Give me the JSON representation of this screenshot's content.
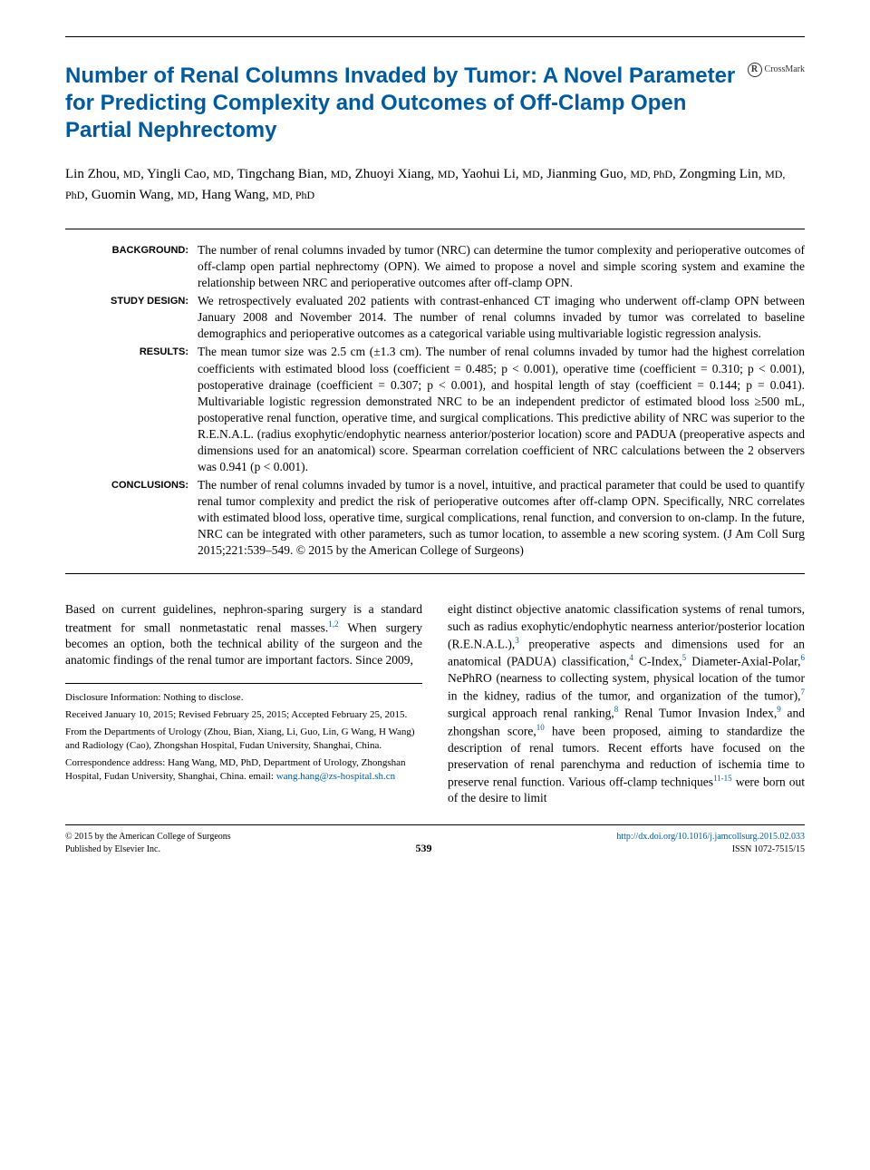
{
  "colors": {
    "accent": "#005a9c",
    "text": "#000000",
    "bg": "#ffffff"
  },
  "typography": {
    "title_fontsize": 24,
    "title_family": "Arial",
    "body_fontsize": 13.5,
    "body_family": "Georgia",
    "abstract_label_fontsize": 11,
    "footer_fontsize": 10
  },
  "crossmark": {
    "label": "CrossMark",
    "glyph": "R"
  },
  "title": "Number of Renal Columns Invaded by Tumor: A Novel Parameter for Predicting Complexity and Outcomes of Off-Clamp Open Partial Nephrectomy",
  "authors_html": "Lin Zhou, <span class='deg'>MD</span>, Yingli Cao, <span class='deg'>MD</span>, Tingchang Bian, <span class='deg'>MD</span>, Zhuoyi Xiang, <span class='deg'>MD</span>, Yaohui Li, <span class='deg'>MD</span>, Jianming Guo, <span class='deg'>MD, PhD</span>, Zongming Lin, <span class='deg'>MD, PhD</span>, Guomin Wang, <span class='deg'>MD</span>, Hang Wang, <span class='deg'>MD, PhD</span>",
  "abstract": [
    {
      "label": "BACKGROUND:",
      "text": "The number of renal columns invaded by tumor (NRC) can determine the tumor complexity and perioperative outcomes of off-clamp open partial nephrectomy (OPN). We aimed to propose a novel and simple scoring system and examine the relationship between NRC and perioperative outcomes after off-clamp OPN."
    },
    {
      "label": "STUDY DESIGN:",
      "text": "We retrospectively evaluated 202 patients with contrast-enhanced CT imaging who underwent off-clamp OPN between January 2008 and November 2014. The number of renal columns invaded by tumor was correlated to baseline demographics and perioperative outcomes as a categorical variable using multivariable logistic regression analysis."
    },
    {
      "label": "RESULTS:",
      "text": "The mean tumor size was 2.5 cm (±1.3 cm). The number of renal columns invaded by tumor had the highest correlation coefficients with estimated blood loss (coefficient = 0.485; p < 0.001), operative time (coefficient = 0.310; p < 0.001), postoperative drainage (coefficient = 0.307; p < 0.001), and hospital length of stay (coefficient = 0.144; p = 0.041). Multivariable logistic regression demonstrated NRC to be an independent predictor of estimated blood loss ≥500 mL, postoperative renal function, operative time, and surgical complications. This predictive ability of NRC was superior to the R.E.N.A.L. (radius exophytic/endophytic nearness anterior/posterior location) score and PADUA (preoperative aspects and dimensions used for an anatomical) score. Spearman correlation coefficient of NRC calculations between the 2 observers was 0.941 (p < 0.001)."
    },
    {
      "label": "CONCLUSIONS:",
      "text": "The number of renal columns invaded by tumor is a novel, intuitive, and practical parameter that could be used to quantify renal tumor complexity and predict the risk of perioperative outcomes after off-clamp OPN. Specifically, NRC correlates with estimated blood loss, operative time, surgical complications, renal function, and conversion to on-clamp. In the future, NRC can be integrated with other parameters, such as tumor location, to assemble a new scoring system. (J Am Coll Surg 2015;221:539–549. © 2015 by the American College of Surgeons)"
    }
  ],
  "body": {
    "left_para": "Based on current guidelines, nephron-sparing surgery is a standard treatment for small nonmetastatic renal masses.<span class='sup'>1,2</span> When surgery becomes an option, both the technical ability of the surgeon and the anatomic findings of the renal tumor are important factors. Since 2009,",
    "right_para": "eight distinct objective anatomic classification systems of renal tumors, such as radius exophytic/endophytic nearness anterior/posterior location (R.E.N.A.L.),<span class='sup'>3</span> preoperative aspects and dimensions used for an anatomical (PADUA) classification,<span class='sup'>4</span> C-Index,<span class='sup'>5</span> Diameter-Axial-Polar,<span class='sup'>6</span> NePhRO (nearness to collecting system, physical location of the tumor in the kidney, radius of the tumor, and organization of the tumor),<span class='sup'>7</span> surgical approach renal ranking,<span class='sup'>8</span> Renal Tumor Invasion Index,<span class='sup'>9</span> and zhongshan score,<span class='sup'>10</span> have been proposed, aiming to standardize the description of renal tumors. Recent efforts have focused on the preservation of renal parenchyma and reduction of ischemia time to preserve renal function. Various off-clamp techniques<span class='sup'>11-15</span> were born out of the desire to limit"
  },
  "disclosure": {
    "line1": "Disclosure Information: Nothing to disclose.",
    "line2": "Received January 10, 2015; Revised February 25, 2015; Accepted February 25, 2015.",
    "line3": "From the Departments of Urology (Zhou, Bian, Xiang, Li, Guo, Lin, G Wang, H Wang) and Radiology (Cao), Zhongshan Hospital, Fudan University, Shanghai, China.",
    "line4_pre": "Correspondence address: Hang Wang, MD, PhD, Department of Urology, Zhongshan Hospital, Fudan University, Shanghai, China. email: ",
    "line4_link": "wang.hang@zs-hospital.sh.cn"
  },
  "footer": {
    "left1": "© 2015 by the American College of Surgeons",
    "left2": "Published by Elsevier Inc.",
    "page": "539",
    "right1": "http://dx.doi.org/10.1016/j.jamcollsurg.2015.02.033",
    "right2": "ISSN 1072-7515/15"
  }
}
